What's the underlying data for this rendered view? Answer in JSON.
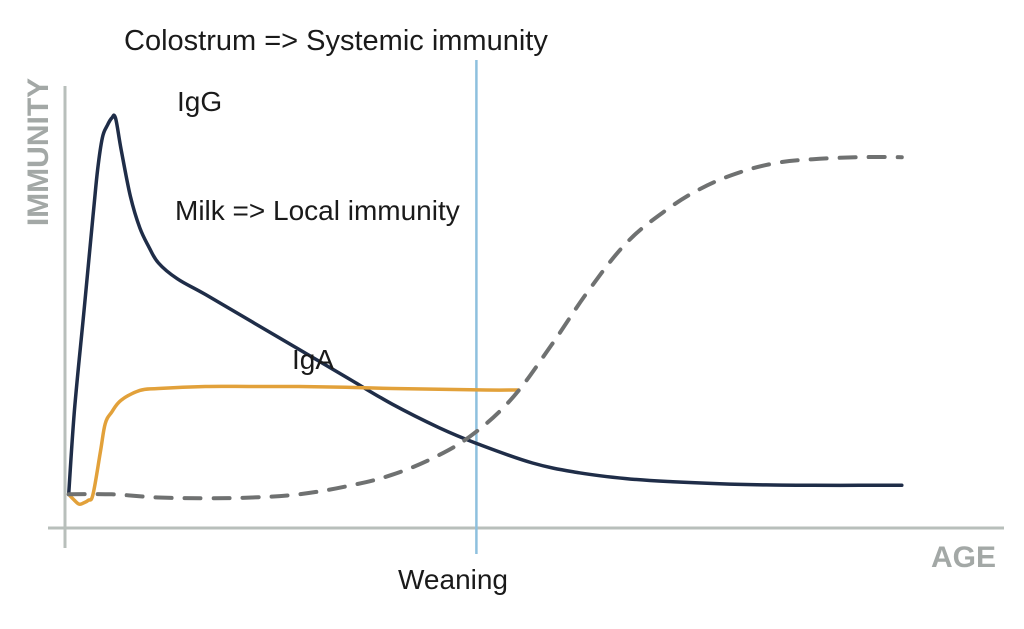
{
  "chart_data": {
    "type": "line",
    "xlabel": "AGE",
    "ylabel": "IMMUNITY",
    "annotations": {
      "colostrum": "Colostrum => Systemic immunity",
      "igg": "IgG",
      "milk": "Milk => Local immunity",
      "iga": "IgA",
      "weaning": "Weaning"
    },
    "grid": false,
    "legend": "none",
    "xlim": [
      0,
      100
    ],
    "ylim": [
      0,
      100
    ],
    "weaning_x": 44,
    "series": [
      {
        "name": "IgG",
        "style": "solid",
        "color": "#1f2d48",
        "x": [
          0.4,
          1.0,
          2.0,
          3.0,
          3.5,
          4.0,
          4.5,
          5.0,
          5.4,
          6.0,
          7.0,
          8.0,
          9.0,
          10.0,
          12.0,
          15.0,
          20.0,
          25.0,
          30.0,
          35.0,
          40.0,
          44.0,
          50.0,
          55.0,
          60.0,
          65.0,
          70.0,
          75.0,
          80.0,
          85.0,
          89.5
        ],
        "y": [
          4,
          25,
          50,
          75,
          87,
          95,
          98,
          100,
          100,
          92,
          80,
          72,
          67,
          63,
          59,
          55,
          48,
          41,
          34,
          27,
          21,
          17,
          12,
          9.5,
          8,
          7.2,
          6.7,
          6.4,
          6.3,
          6.3,
          6.3
        ]
      },
      {
        "name": "IgA",
        "style": "solid",
        "color": "#e2a13a",
        "x": [
          0.4,
          1.0,
          1.5,
          2.0,
          2.5,
          3.0,
          3.8,
          4.3,
          5.0,
          6.0,
          8.0,
          10.0,
          15.0,
          20.0,
          25.0,
          30.0,
          35.0,
          40.0,
          45.0,
          48.5
        ],
        "y": [
          4,
          2.5,
          1.5,
          1.8,
          2.5,
          4,
          15,
          22,
          25,
          28,
          30.5,
          31,
          31.5,
          31.5,
          31.5,
          31.3,
          31,
          30.8,
          30.6,
          30.6
        ]
      },
      {
        "name": "systemic-immunity",
        "style": "dashed",
        "color": "#6f7171",
        "x": [
          0.4,
          5.0,
          10.0,
          15.0,
          20.0,
          25.0,
          30.0,
          35.0,
          40.0,
          44.0,
          48.0,
          52.0,
          56.0,
          60.0,
          64.0,
          68.0,
          72.0,
          76.0,
          80.0,
          85.0,
          89.5
        ],
        "y": [
          4,
          4,
          3.2,
          3,
          3.2,
          4,
          6,
          9,
          14,
          20,
          29,
          42,
          56,
          68,
          76,
          82,
          86,
          88.5,
          89.5,
          90,
          90
        ]
      }
    ]
  }
}
